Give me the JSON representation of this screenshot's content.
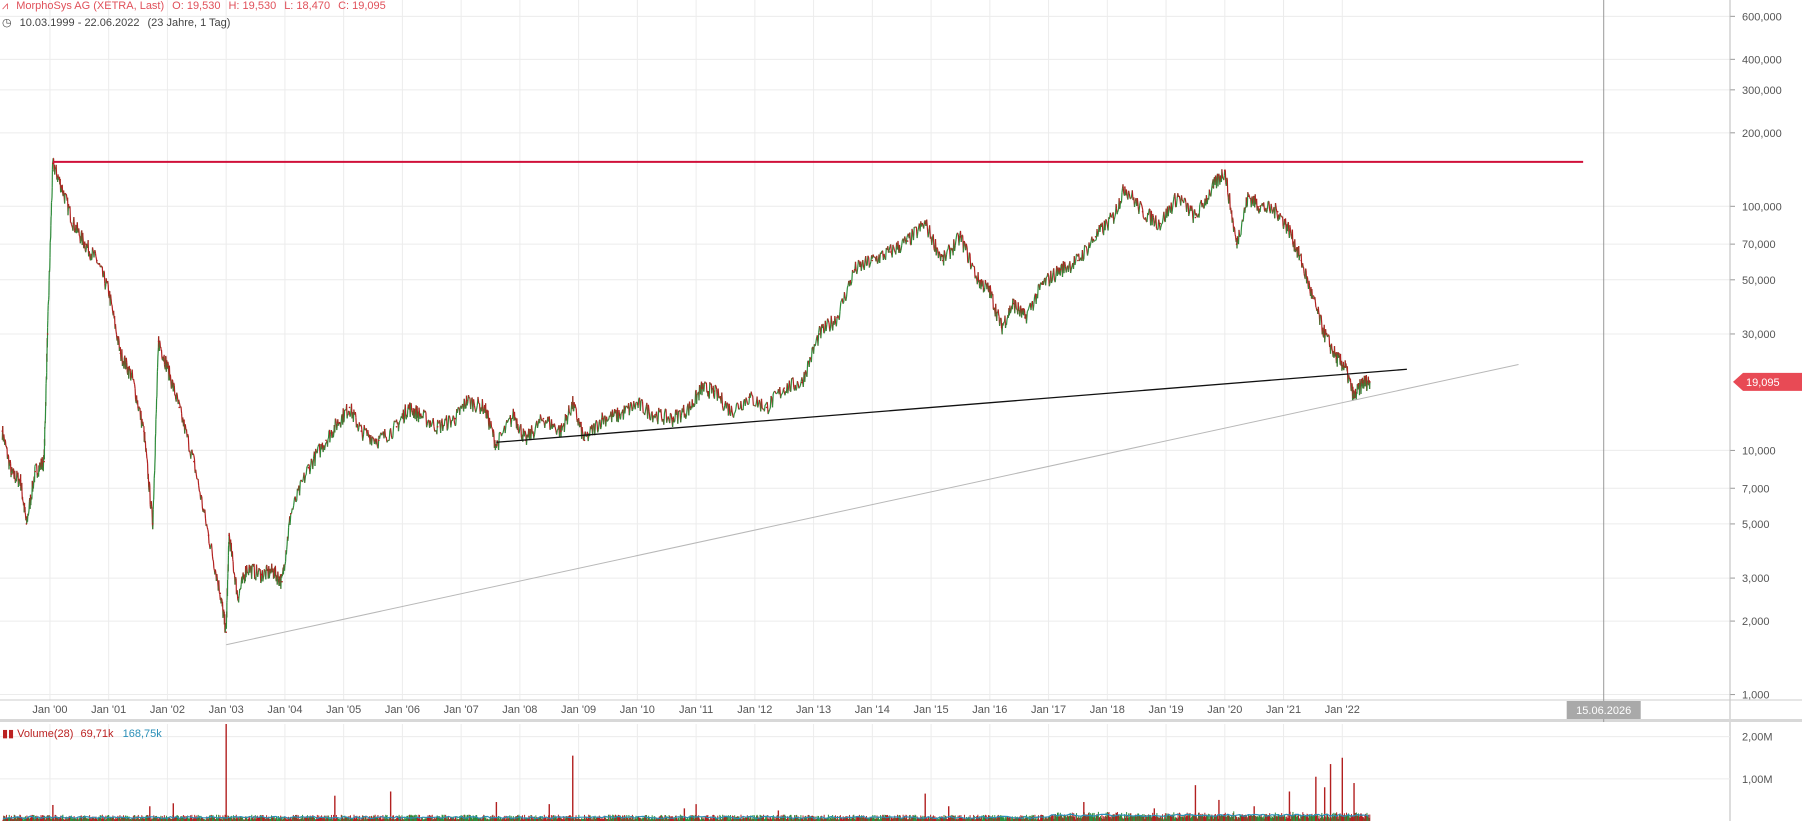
{
  "header": {
    "instrument": "MorphoSys AG (XETRA, Last)",
    "open": "O: 19,530",
    "high": "H: 19,530",
    "low": "L: 18,470",
    "close": "C: 19,095",
    "range": "10.03.1999 - 22.06.2022",
    "range_detail": "(23 Jahre, 1 Tag)"
  },
  "volume": {
    "label": "Volume(28)",
    "value1": "69,71k",
    "value2": "168,75k",
    "axis_labels": [
      "2,00M",
      "1,00M"
    ]
  },
  "colors": {
    "up": "#2e8b3a",
    "down": "#b22020",
    "resistance": "#d0103a",
    "support": "#111111",
    "trend": "#b8b8b8",
    "price_badge": "#e84a55",
    "grid": "#ececec",
    "vol_avg": "#2a8fb8"
  },
  "price_badge": "19,095",
  "date_marker": "15.06.2026",
  "chart_data": {
    "type": "line",
    "title": "MorphoSys AG (XETRA, Last)",
    "scale": "log",
    "ylim": [
      950,
      700000
    ],
    "y_ticks": [
      {
        "v": 600000,
        "l": "600,000"
      },
      {
        "v": 400000,
        "l": "400,000"
      },
      {
        "v": 300000,
        "l": "300,000"
      },
      {
        "v": 200000,
        "l": "200,000"
      },
      {
        "v": 100000,
        "l": "100,000"
      },
      {
        "v": 70000,
        "l": "70,000"
      },
      {
        "v": 50000,
        "l": "50,000"
      },
      {
        "v": 30000,
        "l": "30,000"
      },
      {
        "v": 10000,
        "l": "10,000"
      },
      {
        "v": 7000,
        "l": "7,000"
      },
      {
        "v": 5000,
        "l": "5,000"
      },
      {
        "v": 3000,
        "l": "3,000"
      },
      {
        "v": 2000,
        "l": "2,000"
      },
      {
        "v": 1000,
        "l": "1,000"
      }
    ],
    "x_ticks": [
      {
        "t": 2000.0,
        "l": "Jan '00"
      },
      {
        "t": 2001.0,
        "l": "Jan '01"
      },
      {
        "t": 2002.0,
        "l": "Jan '02"
      },
      {
        "t": 2003.0,
        "l": "Jan '03"
      },
      {
        "t": 2004.0,
        "l": "Jan '04"
      },
      {
        "t": 2005.0,
        "l": "Jan '05"
      },
      {
        "t": 2006.0,
        "l": "Jan '06"
      },
      {
        "t": 2007.0,
        "l": "Jan '07"
      },
      {
        "t": 2008.0,
        "l": "Jan '08"
      },
      {
        "t": 2009.0,
        "l": "Jan '09"
      },
      {
        "t": 2010.0,
        "l": "Jan '10"
      },
      {
        "t": 2011.0,
        "l": "Jan '11"
      },
      {
        "t": 2012.0,
        "l": "Jan '12"
      },
      {
        "t": 2013.0,
        "l": "Jan '13"
      },
      {
        "t": 2014.0,
        "l": "Jan '14"
      },
      {
        "t": 2015.0,
        "l": "Jan '15"
      },
      {
        "t": 2016.0,
        "l": "Jan '16"
      },
      {
        "t": 2017.0,
        "l": "Jan '17"
      },
      {
        "t": 2018.0,
        "l": "Jan '18"
      },
      {
        "t": 2019.0,
        "l": "Jan '19"
      },
      {
        "t": 2020.0,
        "l": "Jan '20"
      },
      {
        "t": 2021.0,
        "l": "Jan '21"
      },
      {
        "t": 2022.0,
        "l": "Jan '22"
      }
    ],
    "xlim": [
      1999.15,
      2028.6
    ],
    "series": [
      {
        "points": [
          [
            1999.19,
            12000
          ],
          [
            1999.35,
            8000
          ],
          [
            1999.5,
            7500
          ],
          [
            1999.6,
            5000
          ],
          [
            1999.75,
            8200
          ],
          [
            1999.9,
            9000
          ],
          [
            1999.96,
            30000
          ],
          [
            2000.05,
            150000
          ],
          [
            2000.2,
            120000
          ],
          [
            2000.4,
            85000
          ],
          [
            2000.6,
            70000
          ],
          [
            2000.8,
            60000
          ],
          [
            2001.0,
            45000
          ],
          [
            2001.2,
            25000
          ],
          [
            2001.4,
            20000
          ],
          [
            2001.6,
            12000
          ],
          [
            2001.75,
            5000
          ],
          [
            2001.85,
            28000
          ],
          [
            2002.0,
            22000
          ],
          [
            2002.2,
            15000
          ],
          [
            2002.45,
            9000
          ],
          [
            2002.7,
            4500
          ],
          [
            2002.9,
            2600
          ],
          [
            2003.0,
            1800
          ],
          [
            2003.05,
            4500
          ],
          [
            2003.2,
            2500
          ],
          [
            2003.35,
            3300
          ],
          [
            2003.6,
            3100
          ],
          [
            2003.8,
            3200
          ],
          [
            2003.95,
            2900
          ],
          [
            2004.1,
            5500
          ],
          [
            2004.4,
            8500
          ],
          [
            2004.7,
            11000
          ],
          [
            2004.9,
            13000
          ],
          [
            2005.1,
            15000
          ],
          [
            2005.3,
            12000
          ],
          [
            2005.6,
            11000
          ],
          [
            2005.9,
            12500
          ],
          [
            2006.1,
            15000
          ],
          [
            2006.3,
            14000
          ],
          [
            2006.6,
            12500
          ],
          [
            2006.9,
            13500
          ],
          [
            2007.1,
            16000
          ],
          [
            2007.4,
            15000
          ],
          [
            2007.6,
            10500
          ],
          [
            2007.9,
            14000
          ],
          [
            2008.1,
            11000
          ],
          [
            2008.4,
            13500
          ],
          [
            2008.7,
            12000
          ],
          [
            2008.9,
            15500
          ],
          [
            2009.1,
            11000
          ],
          [
            2009.4,
            13500
          ],
          [
            2009.7,
            14000
          ],
          [
            2010.0,
            15500
          ],
          [
            2010.3,
            14000
          ],
          [
            2010.6,
            13500
          ],
          [
            2010.9,
            15000
          ],
          [
            2011.1,
            18000
          ],
          [
            2011.3,
            17500
          ],
          [
            2011.6,
            14500
          ],
          [
            2011.9,
            16500
          ],
          [
            2012.2,
            15000
          ],
          [
            2012.5,
            18000
          ],
          [
            2012.8,
            19000
          ],
          [
            2013.1,
            30000
          ],
          [
            2013.4,
            35000
          ],
          [
            2013.7,
            55000
          ],
          [
            2014.0,
            60000
          ],
          [
            2014.3,
            65000
          ],
          [
            2014.6,
            72000
          ],
          [
            2014.9,
            85000
          ],
          [
            2015.2,
            60000
          ],
          [
            2015.5,
            75000
          ],
          [
            2015.8,
            50000
          ],
          [
            2016.0,
            45000
          ],
          [
            2016.2,
            32000
          ],
          [
            2016.4,
            40000
          ],
          [
            2016.6,
            35000
          ],
          [
            2016.9,
            48000
          ],
          [
            2017.2,
            55000
          ],
          [
            2017.5,
            60000
          ],
          [
            2017.8,
            75000
          ],
          [
            2018.1,
            90000
          ],
          [
            2018.3,
            120000
          ],
          [
            2018.6,
            95000
          ],
          [
            2018.9,
            85000
          ],
          [
            2019.2,
            110000
          ],
          [
            2019.5,
            90000
          ],
          [
            2019.8,
            120000
          ],
          [
            2020.0,
            140000
          ],
          [
            2020.2,
            70000
          ],
          [
            2020.4,
            110000
          ],
          [
            2020.6,
            100000
          ],
          [
            2020.9,
            95000
          ],
          [
            2021.1,
            80000
          ],
          [
            2021.3,
            60000
          ],
          [
            2021.5,
            42000
          ],
          [
            2021.7,
            30000
          ],
          [
            2021.9,
            24000
          ],
          [
            2022.05,
            22000
          ],
          [
            2022.2,
            16500
          ],
          [
            2022.35,
            19000
          ],
          [
            2022.47,
            19095
          ]
        ]
      }
    ],
    "lines": [
      {
        "role": "resistance",
        "from": [
          2000.05,
          152000
        ],
        "to": [
          2026.1,
          152000
        ]
      },
      {
        "role": "support",
        "from": [
          2007.6,
          10800
        ],
        "to": [
          2023.1,
          21500
        ]
      },
      {
        "role": "trend",
        "from": [
          2003.0,
          1600
        ],
        "to": [
          2025.0,
          22500
        ]
      }
    ],
    "volume_bars": [
      {
        "t": 2000.05,
        "v": 0.38
      },
      {
        "t": 2001.7,
        "v": 0.35
      },
      {
        "t": 2002.1,
        "v": 0.42
      },
      {
        "t": 2003.0,
        "v": 2.3
      },
      {
        "t": 2004.85,
        "v": 0.6
      },
      {
        "t": 2005.8,
        "v": 0.7
      },
      {
        "t": 2007.6,
        "v": 0.45
      },
      {
        "t": 2008.5,
        "v": 0.4
      },
      {
        "t": 2008.9,
        "v": 1.55
      },
      {
        "t": 2010.8,
        "v": 0.3
      },
      {
        "t": 2011.0,
        "v": 0.4
      },
      {
        "t": 2012.4,
        "v": 0.25
      },
      {
        "t": 2014.9,
        "v": 0.65
      },
      {
        "t": 2015.3,
        "v": 0.35
      },
      {
        "t": 2017.6,
        "v": 0.45
      },
      {
        "t": 2018.8,
        "v": 0.3
      },
      {
        "t": 2019.5,
        "v": 0.85
      },
      {
        "t": 2019.9,
        "v": 0.5
      },
      {
        "t": 2020.5,
        "v": 0.35
      },
      {
        "t": 2021.1,
        "v": 0.7
      },
      {
        "t": 2021.55,
        "v": 1.05
      },
      {
        "t": 2021.7,
        "v": 0.8
      },
      {
        "t": 2021.8,
        "v": 1.35
      },
      {
        "t": 2022.0,
        "v": 1.5
      },
      {
        "t": 2022.2,
        "v": 0.9
      }
    ],
    "volume_ylim": [
      0,
      2.3
    ]
  }
}
